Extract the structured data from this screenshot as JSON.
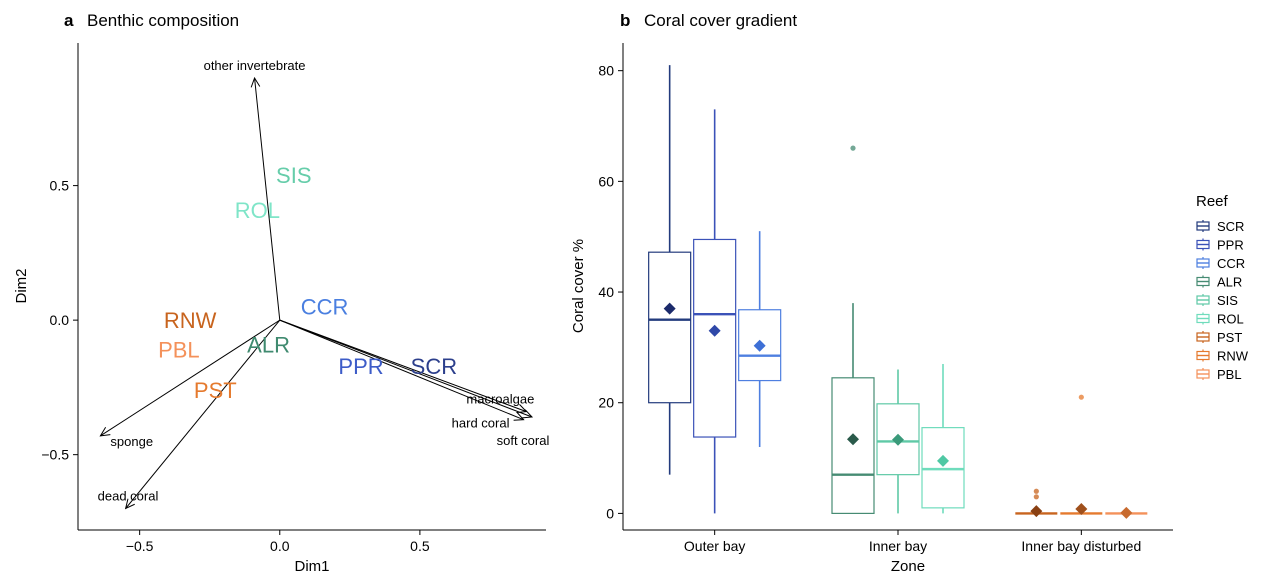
{
  "chart_data": [
    {
      "panel": "a",
      "title": "Benthic composition",
      "type": "scatter",
      "xlabel": "Dim1",
      "ylabel": "Dim2",
      "xlim": [
        -0.72,
        0.95
      ],
      "ylim": [
        -0.78,
        1.03
      ],
      "xticks": [
        -0.5,
        0.0,
        0.5
      ],
      "xtick_labels": [
        "−0.5",
        "0.0",
        "0.5"
      ],
      "yticks": [
        -0.5,
        0.0,
        0.5
      ],
      "ytick_labels": [
        "−0.5",
        "0.0",
        "0.5"
      ],
      "grid": false,
      "vectors": [
        {
          "label": "other invertebrate",
          "x": -0.09,
          "y": 0.9
        },
        {
          "label": "macroalgae",
          "x": 0.88,
          "y": -0.34
        },
        {
          "label": "hard coral",
          "x": 0.87,
          "y": -0.37
        },
        {
          "label": "soft coral",
          "x": 0.9,
          "y": -0.36
        },
        {
          "label": "sponge",
          "x": -0.64,
          "y": -0.43
        },
        {
          "label": "dead coral",
          "x": -0.55,
          "y": -0.7
        }
      ],
      "sites": [
        {
          "label": "SIS",
          "x": 0.05,
          "y": 0.54,
          "color": "#66cdaa"
        },
        {
          "label": "ROL",
          "x": -0.08,
          "y": 0.41,
          "color": "#7fe5c8"
        },
        {
          "label": "CCR",
          "x": 0.16,
          "y": 0.05,
          "color": "#4a7fe0"
        },
        {
          "label": "RNW",
          "x": -0.32,
          "y": 0.0,
          "color": "#c8641e"
        },
        {
          "label": "PBL",
          "x": -0.36,
          "y": -0.11,
          "color": "#f4915a"
        },
        {
          "label": "ALR",
          "x": -0.04,
          "y": -0.09,
          "color": "#3f8a6f"
        },
        {
          "label": "PPR",
          "x": 0.29,
          "y": -0.17,
          "color": "#3d5cc8"
        },
        {
          "label": "SCR",
          "x": 0.55,
          "y": -0.17,
          "color": "#2c3f8c"
        },
        {
          "label": "PST",
          "x": -0.23,
          "y": -0.26,
          "color": "#e57a2e"
        }
      ]
    },
    {
      "panel": "b",
      "title": "Coral cover gradient",
      "type": "box",
      "xlabel": "Zone",
      "ylabel": "Coral cover %",
      "categories": [
        "Outer bay",
        "Inner bay",
        "Inner bay disturbed"
      ],
      "ylim": [
        -3,
        85
      ],
      "yticks": [
        0,
        20,
        40,
        60,
        80
      ],
      "legend_title": "Reef",
      "legend_position": "right",
      "grid": false,
      "series": [
        {
          "name": "SCR",
          "zone": 0,
          "color": "#233b7d",
          "mean_color": "#1b2a6b",
          "min": 7,
          "q1": 20,
          "median": 35,
          "q3": 47.2,
          "max": 81,
          "mean": 37,
          "outliers": []
        },
        {
          "name": "PPR",
          "zone": 0,
          "color": "#3b52b8",
          "mean_color": "#2f48a8",
          "min": 0,
          "q1": 13.8,
          "median": 36,
          "q3": 49.5,
          "max": 73,
          "mean": 33,
          "outliers": []
        },
        {
          "name": "CCR",
          "zone": 0,
          "color": "#4e7fe0",
          "mean_color": "#3e70d6",
          "min": 12,
          "q1": 24,
          "median": 28.5,
          "q3": 36.8,
          "max": 51,
          "mean": 30.3,
          "outliers": []
        },
        {
          "name": "ALR",
          "zone": 1,
          "color": "#468b73",
          "mean_color": "#2a5a4a",
          "min": 0,
          "q1": 0,
          "median": 7,
          "q3": 24.5,
          "max": 38,
          "mean": 13.4,
          "outliers": [
            66
          ]
        },
        {
          "name": "SIS",
          "zone": 1,
          "color": "#5fc9a6",
          "mean_color": "#3a9a7a",
          "min": 0,
          "q1": 7,
          "median": 13,
          "q3": 19.8,
          "max": 26,
          "mean": 13.3,
          "outliers": []
        },
        {
          "name": "ROL",
          "zone": 1,
          "color": "#6fdcbc",
          "mean_color": "#4fc8a4",
          "min": 0,
          "q1": 1,
          "median": 8,
          "q3": 15.5,
          "max": 27,
          "mean": 9.5,
          "outliers": []
        },
        {
          "name": "PST",
          "zone": 2,
          "color": "#c8641e",
          "mean_color": "#8a4012",
          "min": 0,
          "q1": 0,
          "median": 0,
          "q3": 0,
          "max": 0,
          "mean": 0.4,
          "outliers": [
            3,
            4
          ]
        },
        {
          "name": "RNW",
          "zone": 2,
          "color": "#e57a2e",
          "mean_color": "#a0501c",
          "min": 0,
          "q1": 0,
          "median": 0,
          "q3": 0,
          "max": 0,
          "mean": 0.8,
          "outliers": [
            21
          ]
        },
        {
          "name": "PBL",
          "zone": 2,
          "color": "#f4915a",
          "mean_color": "#c86a2e",
          "min": 0,
          "q1": 0,
          "median": 0,
          "q3": 0,
          "max": 0,
          "mean": 0.1,
          "outliers": []
        }
      ]
    }
  ]
}
